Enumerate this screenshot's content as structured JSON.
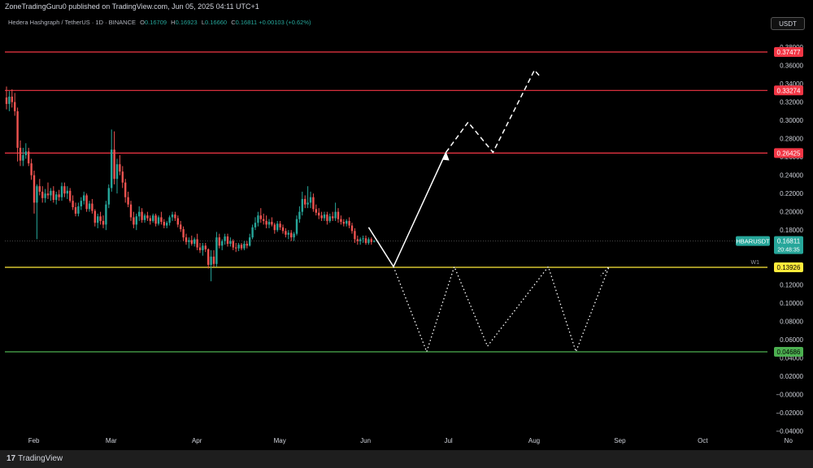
{
  "publish_line": "ZoneTradingGuru0 published on TradingView.com, Jun 05, 2025 04:11 UTC+1",
  "symbol_line": {
    "title": "Hedera Hashgraph / TetherUS · 1D · BINANCE",
    "o_label": "O",
    "o_value": "0.16709",
    "h_label": "H",
    "h_value": "0.16923",
    "l_label": "L",
    "l_value": "0.16660",
    "c_label": "C",
    "c_value": "0.16811",
    "change": "+0.00103 (+0.62%)"
  },
  "currency_button": "USDT",
  "footer": {
    "logo": "17",
    "brand": "TradingView"
  },
  "colors": {
    "up": "#26a69a",
    "down": "#ef5350",
    "resistance": "#f23645",
    "support_yellow": "#ffeb3b",
    "support_green": "#4caf50",
    "projection": "#ffffff"
  },
  "chart_data": {
    "type": "candlestick",
    "symbol": "HBARUSDT",
    "y_axis": {
      "ticks": [
        "0.38000",
        "0.36000",
        "0.34000",
        "0.32000",
        "0.30000",
        "0.28000",
        "0.26000",
        "0.24000",
        "0.22000",
        "0.20000",
        "0.18000",
        "0.16000",
        "0.14000",
        "0.12000",
        "0.10000",
        "0.08000",
        "0.06000",
        "0.04000",
        "0.02000",
        "−0.00000",
        "−0.02000",
        "−0.04000"
      ],
      "range": [
        -0.042,
        0.389
      ]
    },
    "x_axis": {
      "ticks": [
        "Feb",
        "Mar",
        "Apr",
        "May",
        "Jun",
        "Jul",
        "Aug",
        "Sep",
        "Oct",
        "No"
      ]
    },
    "current_price": {
      "symbol": "HBARUSDT",
      "value": "0.16811",
      "countdown": "20:48:35"
    },
    "levels": [
      {
        "value": 0.37477,
        "label": "0.37477",
        "color": "#f23645",
        "tag": ""
      },
      {
        "value": 0.33274,
        "label": "0.33274",
        "color": "#f23645",
        "tag": ""
      },
      {
        "value": 0.26425,
        "label": "0.26425",
        "color": "#f23645",
        "tag": ""
      },
      {
        "value": 0.13926,
        "label": "0.13926",
        "color": "#ffeb3b",
        "tag": "W1"
      },
      {
        "value": 0.04686,
        "label": "0.04686",
        "color": "#4caf50",
        "tag": ""
      }
    ],
    "projections": [
      {
        "style": "solid",
        "points": [
          [
            "2025-06-03",
            0.183
          ],
          [
            "2025-06-12",
            0.14
          ],
          [
            "2025-07-01",
            0.265
          ]
        ]
      },
      {
        "style": "dashed",
        "points": [
          [
            "2025-07-01",
            0.265
          ],
          [
            "2025-07-09",
            0.298
          ],
          [
            "2025-07-18",
            0.265
          ],
          [
            "2025-08-02",
            0.355
          ],
          [
            "2025-08-04",
            0.348
          ]
        ]
      },
      {
        "style": "dotted",
        "points": [
          [
            "2025-06-12",
            0.14
          ],
          [
            "2025-06-24",
            0.047
          ],
          [
            "2025-07-04",
            0.14
          ],
          [
            "2025-07-16",
            0.053
          ],
          [
            "2025-08-07",
            0.14
          ],
          [
            "2025-08-17",
            0.047
          ],
          [
            "2025-08-29",
            0.14
          ],
          [
            "2025-08-26",
            0.13
          ]
        ]
      }
    ],
    "candles": [
      [
        "2025-01-23",
        0.325,
        0.337,
        0.312,
        0.318
      ],
      [
        "2025-01-24",
        0.318,
        0.332,
        0.31,
        0.326
      ],
      [
        "2025-01-25",
        0.326,
        0.334,
        0.314,
        0.32
      ],
      [
        "2025-01-26",
        0.32,
        0.33,
        0.305,
        0.31
      ],
      [
        "2025-01-27",
        0.31,
        0.314,
        0.255,
        0.27
      ],
      [
        "2025-01-28",
        0.27,
        0.278,
        0.25,
        0.256
      ],
      [
        "2025-01-29",
        0.256,
        0.27,
        0.25,
        0.262
      ],
      [
        "2025-01-30",
        0.262,
        0.275,
        0.258,
        0.266
      ],
      [
        "2025-01-31",
        0.266,
        0.27,
        0.25,
        0.253
      ],
      [
        "2025-02-01",
        0.253,
        0.258,
        0.235,
        0.24
      ],
      [
        "2025-02-02",
        0.24,
        0.245,
        0.198,
        0.21
      ],
      [
        "2025-02-03",
        0.21,
        0.23,
        0.17,
        0.228
      ],
      [
        "2025-02-04",
        0.228,
        0.236,
        0.218,
        0.222
      ],
      [
        "2025-02-05",
        0.222,
        0.228,
        0.21,
        0.215
      ],
      [
        "2025-02-06",
        0.215,
        0.225,
        0.21,
        0.22
      ],
      [
        "2025-02-07",
        0.22,
        0.232,
        0.214,
        0.218
      ],
      [
        "2025-02-08",
        0.218,
        0.226,
        0.212,
        0.223
      ],
      [
        "2025-02-09",
        0.223,
        0.228,
        0.21,
        0.213
      ],
      [
        "2025-02-10",
        0.213,
        0.222,
        0.208,
        0.219
      ],
      [
        "2025-02-11",
        0.219,
        0.224,
        0.212,
        0.216
      ],
      [
        "2025-02-12",
        0.216,
        0.232,
        0.212,
        0.228
      ],
      [
        "2025-02-13",
        0.228,
        0.232,
        0.216,
        0.22
      ],
      [
        "2025-02-14",
        0.22,
        0.228,
        0.214,
        0.223
      ],
      [
        "2025-02-15",
        0.223,
        0.226,
        0.21,
        0.212
      ],
      [
        "2025-02-16",
        0.212,
        0.218,
        0.202,
        0.205
      ],
      [
        "2025-02-17",
        0.205,
        0.21,
        0.195,
        0.198
      ],
      [
        "2025-02-18",
        0.198,
        0.21,
        0.195,
        0.206
      ],
      [
        "2025-02-19",
        0.206,
        0.216,
        0.202,
        0.212
      ],
      [
        "2025-02-20",
        0.212,
        0.222,
        0.208,
        0.218
      ],
      [
        "2025-02-21",
        0.218,
        0.22,
        0.2,
        0.203
      ],
      [
        "2025-02-22",
        0.203,
        0.212,
        0.2,
        0.209
      ],
      [
        "2025-02-23",
        0.209,
        0.214,
        0.198,
        0.201
      ],
      [
        "2025-02-24",
        0.201,
        0.203,
        0.184,
        0.188
      ],
      [
        "2025-02-25",
        0.188,
        0.198,
        0.182,
        0.195
      ],
      [
        "2025-02-26",
        0.195,
        0.2,
        0.186,
        0.19
      ],
      [
        "2025-02-27",
        0.19,
        0.196,
        0.182,
        0.186
      ],
      [
        "2025-02-28",
        0.186,
        0.212,
        0.18,
        0.208
      ],
      [
        "2025-03-01",
        0.208,
        0.23,
        0.204,
        0.226
      ],
      [
        "2025-03-02",
        0.226,
        0.29,
        0.222,
        0.268
      ],
      [
        "2025-03-03",
        0.268,
        0.288,
        0.23,
        0.236
      ],
      [
        "2025-03-04",
        0.236,
        0.258,
        0.22,
        0.252
      ],
      [
        "2025-03-05",
        0.252,
        0.262,
        0.24,
        0.244
      ],
      [
        "2025-03-06",
        0.244,
        0.25,
        0.226,
        0.232
      ],
      [
        "2025-03-07",
        0.232,
        0.236,
        0.21,
        0.216
      ],
      [
        "2025-03-08",
        0.216,
        0.222,
        0.205,
        0.208
      ],
      [
        "2025-03-09",
        0.208,
        0.212,
        0.19,
        0.194
      ],
      [
        "2025-03-10",
        0.194,
        0.2,
        0.182,
        0.186
      ],
      [
        "2025-03-11",
        0.186,
        0.198,
        0.18,
        0.195
      ],
      [
        "2025-03-12",
        0.195,
        0.206,
        0.19,
        0.2
      ],
      [
        "2025-03-13",
        0.2,
        0.204,
        0.188,
        0.191
      ],
      [
        "2025-03-14",
        0.191,
        0.198,
        0.188,
        0.196
      ],
      [
        "2025-03-15",
        0.196,
        0.2,
        0.19,
        0.193
      ],
      [
        "2025-03-16",
        0.193,
        0.196,
        0.186,
        0.19
      ],
      [
        "2025-03-17",
        0.19,
        0.198,
        0.188,
        0.196
      ],
      [
        "2025-03-18",
        0.196,
        0.198,
        0.184,
        0.187
      ],
      [
        "2025-03-19",
        0.187,
        0.196,
        0.185,
        0.194
      ],
      [
        "2025-03-20",
        0.194,
        0.2,
        0.186,
        0.189
      ],
      [
        "2025-03-21",
        0.189,
        0.192,
        0.182,
        0.185
      ],
      [
        "2025-03-22",
        0.185,
        0.19,
        0.182,
        0.188
      ],
      [
        "2025-03-23",
        0.188,
        0.196,
        0.185,
        0.194
      ],
      [
        "2025-03-24",
        0.194,
        0.2,
        0.19,
        0.197
      ],
      [
        "2025-03-25",
        0.197,
        0.2,
        0.19,
        0.193
      ],
      [
        "2025-03-26",
        0.193,
        0.196,
        0.183,
        0.186
      ],
      [
        "2025-03-27",
        0.186,
        0.19,
        0.178,
        0.181
      ],
      [
        "2025-03-28",
        0.181,
        0.184,
        0.168,
        0.172
      ],
      [
        "2025-03-29",
        0.172,
        0.176,
        0.164,
        0.167
      ],
      [
        "2025-03-30",
        0.167,
        0.172,
        0.16,
        0.169
      ],
      [
        "2025-03-31",
        0.169,
        0.174,
        0.163,
        0.165
      ],
      [
        "2025-04-01",
        0.165,
        0.172,
        0.162,
        0.17
      ],
      [
        "2025-04-02",
        0.17,
        0.176,
        0.158,
        0.161
      ],
      [
        "2025-04-03",
        0.161,
        0.166,
        0.155,
        0.158
      ],
      [
        "2025-04-04",
        0.158,
        0.166,
        0.152,
        0.163
      ],
      [
        "2025-04-05",
        0.163,
        0.166,
        0.156,
        0.159
      ],
      [
        "2025-04-06",
        0.159,
        0.16,
        0.138,
        0.142
      ],
      [
        "2025-04-07",
        0.142,
        0.158,
        0.124,
        0.151
      ],
      [
        "2025-04-08",
        0.151,
        0.158,
        0.14,
        0.143
      ],
      [
        "2025-04-09",
        0.143,
        0.178,
        0.14,
        0.172
      ],
      [
        "2025-04-10",
        0.172,
        0.176,
        0.16,
        0.163
      ],
      [
        "2025-04-11",
        0.163,
        0.17,
        0.158,
        0.168
      ],
      [
        "2025-04-12",
        0.168,
        0.176,
        0.164,
        0.173
      ],
      [
        "2025-04-13",
        0.173,
        0.176,
        0.162,
        0.165
      ],
      [
        "2025-04-14",
        0.165,
        0.172,
        0.162,
        0.168
      ],
      [
        "2025-04-15",
        0.168,
        0.17,
        0.158,
        0.161
      ],
      [
        "2025-04-16",
        0.161,
        0.166,
        0.156,
        0.16
      ],
      [
        "2025-04-17",
        0.16,
        0.166,
        0.157,
        0.164
      ],
      [
        "2025-04-18",
        0.164,
        0.166,
        0.158,
        0.16
      ],
      [
        "2025-04-19",
        0.16,
        0.168,
        0.158,
        0.165
      ],
      [
        "2025-04-20",
        0.165,
        0.168,
        0.16,
        0.163
      ],
      [
        "2025-04-21",
        0.163,
        0.176,
        0.162,
        0.172
      ],
      [
        "2025-04-22",
        0.172,
        0.186,
        0.17,
        0.183
      ],
      [
        "2025-04-23",
        0.183,
        0.194,
        0.18,
        0.188
      ],
      [
        "2025-04-24",
        0.188,
        0.2,
        0.184,
        0.196
      ],
      [
        "2025-04-25",
        0.196,
        0.204,
        0.188,
        0.192
      ],
      [
        "2025-04-26",
        0.192,
        0.198,
        0.186,
        0.19
      ],
      [
        "2025-04-27",
        0.19,
        0.196,
        0.182,
        0.186
      ],
      [
        "2025-04-28",
        0.186,
        0.192,
        0.182,
        0.189
      ],
      [
        "2025-04-29",
        0.189,
        0.194,
        0.184,
        0.186
      ],
      [
        "2025-04-30",
        0.186,
        0.188,
        0.176,
        0.18
      ],
      [
        "2025-05-01",
        0.18,
        0.19,
        0.178,
        0.187
      ],
      [
        "2025-05-02",
        0.187,
        0.19,
        0.18,
        0.183
      ],
      [
        "2025-05-03",
        0.183,
        0.186,
        0.176,
        0.179
      ],
      [
        "2025-05-04",
        0.179,
        0.182,
        0.172,
        0.175
      ],
      [
        "2025-05-05",
        0.175,
        0.18,
        0.17,
        0.177
      ],
      [
        "2025-05-06",
        0.177,
        0.18,
        0.168,
        0.172
      ],
      [
        "2025-05-07",
        0.172,
        0.178,
        0.168,
        0.176
      ],
      [
        "2025-05-08",
        0.176,
        0.196,
        0.174,
        0.192
      ],
      [
        "2025-05-09",
        0.192,
        0.206,
        0.188,
        0.2
      ],
      [
        "2025-05-10",
        0.2,
        0.222,
        0.196,
        0.214
      ],
      [
        "2025-05-11",
        0.214,
        0.218,
        0.204,
        0.208
      ],
      [
        "2025-05-12",
        0.208,
        0.228,
        0.204,
        0.21
      ],
      [
        "2025-05-13",
        0.21,
        0.222,
        0.204,
        0.216
      ],
      [
        "2025-05-14",
        0.216,
        0.22,
        0.2,
        0.203
      ],
      [
        "2025-05-15",
        0.203,
        0.208,
        0.196,
        0.199
      ],
      [
        "2025-05-16",
        0.199,
        0.204,
        0.192,
        0.196
      ],
      [
        "2025-05-17",
        0.196,
        0.2,
        0.19,
        0.193
      ],
      [
        "2025-05-18",
        0.193,
        0.2,
        0.19,
        0.197
      ],
      [
        "2025-05-19",
        0.197,
        0.2,
        0.186,
        0.19
      ],
      [
        "2025-05-20",
        0.19,
        0.198,
        0.188,
        0.195
      ],
      [
        "2025-05-21",
        0.195,
        0.2,
        0.19,
        0.193
      ],
      [
        "2025-05-22",
        0.193,
        0.21,
        0.19,
        0.2
      ],
      [
        "2025-05-23",
        0.2,
        0.204,
        0.188,
        0.192
      ],
      [
        "2025-05-24",
        0.192,
        0.196,
        0.186,
        0.189
      ],
      [
        "2025-05-25",
        0.189,
        0.192,
        0.184,
        0.187
      ],
      [
        "2025-05-26",
        0.187,
        0.192,
        0.184,
        0.19
      ],
      [
        "2025-05-27",
        0.19,
        0.194,
        0.182,
        0.185
      ],
      [
        "2025-05-28",
        0.185,
        0.188,
        0.176,
        0.179
      ],
      [
        "2025-05-29",
        0.179,
        0.182,
        0.166,
        0.17
      ],
      [
        "2025-05-30",
        0.17,
        0.174,
        0.164,
        0.168
      ],
      [
        "2025-05-31",
        0.168,
        0.172,
        0.164,
        0.17
      ],
      [
        "2025-06-01",
        0.17,
        0.174,
        0.166,
        0.171
      ],
      [
        "2025-06-02",
        0.171,
        0.174,
        0.164,
        0.166
      ],
      [
        "2025-06-03",
        0.166,
        0.172,
        0.164,
        0.17
      ],
      [
        "2025-06-04",
        0.17,
        0.172,
        0.164,
        0.167
      ],
      [
        "2025-06-05",
        0.16709,
        0.16923,
        0.1666,
        0.16811
      ]
    ]
  }
}
